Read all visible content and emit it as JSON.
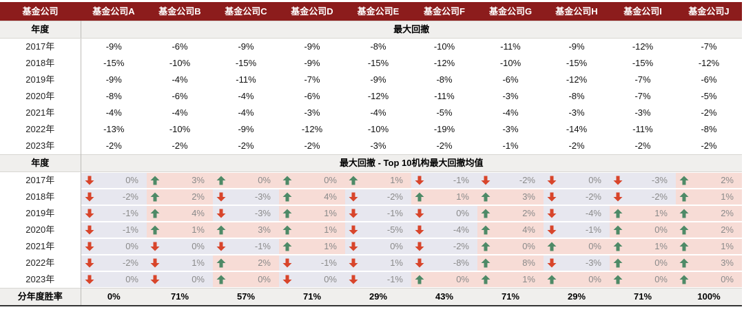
{
  "header": {
    "corner": "基金公司",
    "companies": [
      "基金公司A",
      "基金公司B",
      "基金公司C",
      "基金公司D",
      "基金公司E",
      "基金公司F",
      "基金公司G",
      "基金公司H",
      "基金公司I",
      "基金公司J"
    ]
  },
  "section1": {
    "label": "年度",
    "title": "最大回撤",
    "rows": [
      {
        "year": "2017年",
        "values": [
          "-9%",
          "-6%",
          "-9%",
          "-9%",
          "-8%",
          "-10%",
          "-11%",
          "-9%",
          "-12%",
          "-7%"
        ]
      },
      {
        "year": "2018年",
        "values": [
          "-15%",
          "-10%",
          "-15%",
          "-9%",
          "-15%",
          "-12%",
          "-10%",
          "-15%",
          "-15%",
          "-12%"
        ]
      },
      {
        "year": "2019年",
        "values": [
          "-9%",
          "-4%",
          "-11%",
          "-7%",
          "-9%",
          "-8%",
          "-6%",
          "-12%",
          "-7%",
          "-6%"
        ]
      },
      {
        "year": "2020年",
        "values": [
          "-8%",
          "-6%",
          "-4%",
          "-6%",
          "-12%",
          "-11%",
          "-3%",
          "-8%",
          "-7%",
          "-5%"
        ]
      },
      {
        "year": "2021年",
        "values": [
          "-4%",
          "-4%",
          "-4%",
          "-3%",
          "-4%",
          "-5%",
          "-4%",
          "-3%",
          "-3%",
          "-2%"
        ]
      },
      {
        "year": "2022年",
        "values": [
          "-13%",
          "-10%",
          "-9%",
          "-12%",
          "-10%",
          "-19%",
          "-3%",
          "-14%",
          "-11%",
          "-8%"
        ]
      },
      {
        "year": "2023年",
        "values": [
          "-2%",
          "-2%",
          "-2%",
          "-2%",
          "-3%",
          "-2%",
          "-1%",
          "-2%",
          "-2%",
          "-2%"
        ]
      }
    ]
  },
  "section2": {
    "label": "年度",
    "title": "最大回撤 - Top 10机构最大回撤均值",
    "colors": {
      "up_arrow": "#4e8a67",
      "down_arrow": "#d8452b",
      "up_bg": "#f7dcd6",
      "down_bg": "#e7e7ef"
    },
    "rows": [
      {
        "year": "2017年",
        "cells": [
          {
            "v": "0%",
            "d": "down"
          },
          {
            "v": "3%",
            "d": "up"
          },
          {
            "v": "0%",
            "d": "up"
          },
          {
            "v": "0%",
            "d": "up"
          },
          {
            "v": "1%",
            "d": "up"
          },
          {
            "v": "-1%",
            "d": "down"
          },
          {
            "v": "-2%",
            "d": "down"
          },
          {
            "v": "0%",
            "d": "down"
          },
          {
            "v": "-3%",
            "d": "down"
          },
          {
            "v": "2%",
            "d": "up"
          }
        ]
      },
      {
        "year": "2018年",
        "cells": [
          {
            "v": "-2%",
            "d": "down"
          },
          {
            "v": "2%",
            "d": "up"
          },
          {
            "v": "-3%",
            "d": "down"
          },
          {
            "v": "4%",
            "d": "up"
          },
          {
            "v": "-2%",
            "d": "down"
          },
          {
            "v": "1%",
            "d": "up"
          },
          {
            "v": "3%",
            "d": "up"
          },
          {
            "v": "-2%",
            "d": "down"
          },
          {
            "v": "-2%",
            "d": "down"
          },
          {
            "v": "1%",
            "d": "up"
          }
        ]
      },
      {
        "year": "2019年",
        "cells": [
          {
            "v": "-1%",
            "d": "down"
          },
          {
            "v": "4%",
            "d": "up"
          },
          {
            "v": "-3%",
            "d": "down"
          },
          {
            "v": "1%",
            "d": "up"
          },
          {
            "v": "-1%",
            "d": "down"
          },
          {
            "v": "0%",
            "d": "down"
          },
          {
            "v": "2%",
            "d": "up"
          },
          {
            "v": "-4%",
            "d": "down"
          },
          {
            "v": "1%",
            "d": "up"
          },
          {
            "v": "2%",
            "d": "up"
          }
        ]
      },
      {
        "year": "2020年",
        "cells": [
          {
            "v": "-1%",
            "d": "down"
          },
          {
            "v": "1%",
            "d": "up"
          },
          {
            "v": "3%",
            "d": "up"
          },
          {
            "v": "1%",
            "d": "up"
          },
          {
            "v": "-5%",
            "d": "down"
          },
          {
            "v": "-4%",
            "d": "down"
          },
          {
            "v": "4%",
            "d": "up"
          },
          {
            "v": "-1%",
            "d": "down"
          },
          {
            "v": "0%",
            "d": "up"
          },
          {
            "v": "2%",
            "d": "up"
          }
        ]
      },
      {
        "year": "2021年",
        "cells": [
          {
            "v": "0%",
            "d": "down"
          },
          {
            "v": "0%",
            "d": "down"
          },
          {
            "v": "-1%",
            "d": "down"
          },
          {
            "v": "1%",
            "d": "up"
          },
          {
            "v": "0%",
            "d": "down"
          },
          {
            "v": "-2%",
            "d": "down"
          },
          {
            "v": "0%",
            "d": "up"
          },
          {
            "v": "0%",
            "d": "up"
          },
          {
            "v": "1%",
            "d": "up"
          },
          {
            "v": "1%",
            "d": "up"
          }
        ]
      },
      {
        "year": "2022年",
        "cells": [
          {
            "v": "-2%",
            "d": "down"
          },
          {
            "v": "1%",
            "d": "down"
          },
          {
            "v": "2%",
            "d": "up"
          },
          {
            "v": "-1%",
            "d": "down"
          },
          {
            "v": "1%",
            "d": "down"
          },
          {
            "v": "-8%",
            "d": "down"
          },
          {
            "v": "8%",
            "d": "up"
          },
          {
            "v": "-3%",
            "d": "down"
          },
          {
            "v": "0%",
            "d": "up"
          },
          {
            "v": "3%",
            "d": "up"
          }
        ]
      },
      {
        "year": "2023年",
        "cells": [
          {
            "v": "0%",
            "d": "down"
          },
          {
            "v": "0%",
            "d": "down"
          },
          {
            "v": "0%",
            "d": "up"
          },
          {
            "v": "0%",
            "d": "down"
          },
          {
            "v": "-1%",
            "d": "down"
          },
          {
            "v": "0%",
            "d": "up"
          },
          {
            "v": "1%",
            "d": "up"
          },
          {
            "v": "0%",
            "d": "up"
          },
          {
            "v": "0%",
            "d": "up"
          },
          {
            "v": "0%",
            "d": "up"
          }
        ]
      }
    ]
  },
  "winrate": {
    "label": "分年度胜率",
    "values": [
      "0%",
      "71%",
      "57%",
      "71%",
      "29%",
      "43%",
      "71%",
      "29%",
      "71%",
      "100%"
    ]
  }
}
